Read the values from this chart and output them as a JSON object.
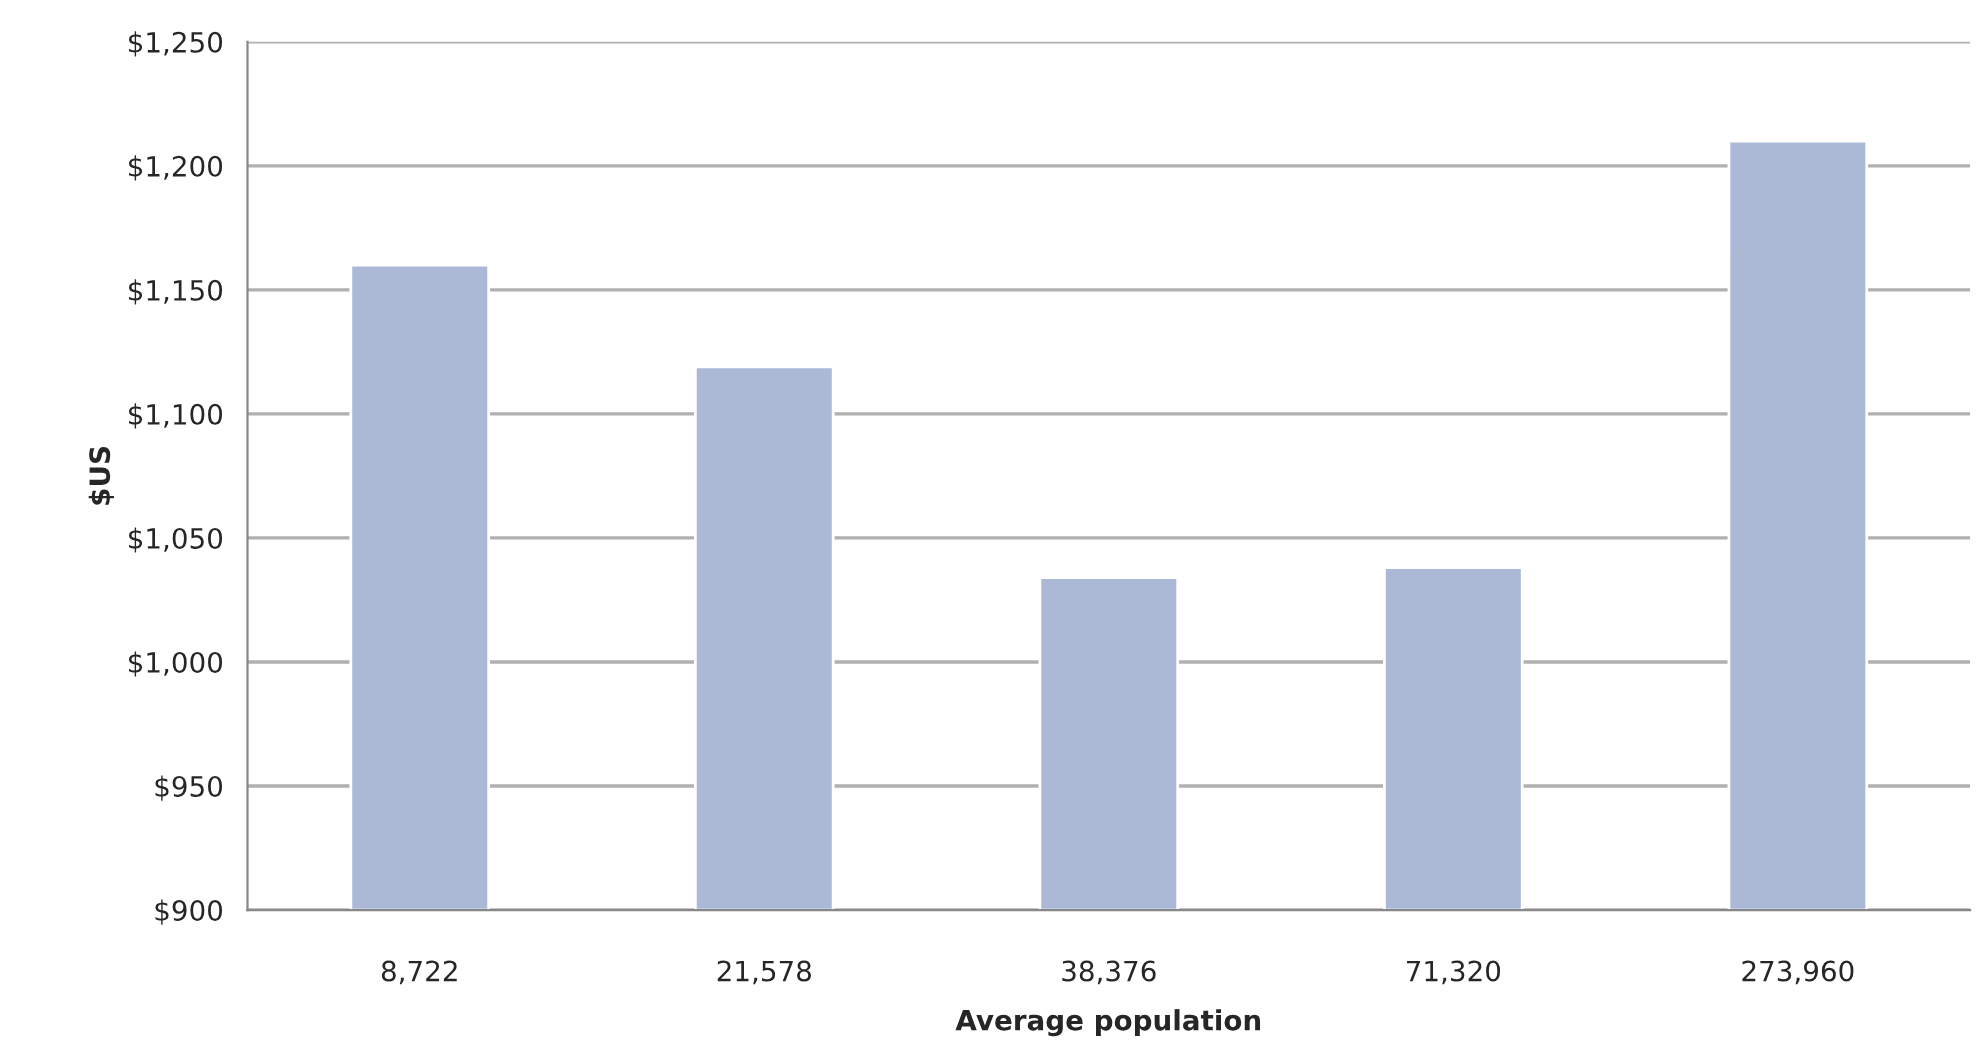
{
  "chart_data": {
    "type": "bar",
    "xlabel": "Average population",
    "ylabel": "$US",
    "categories": [
      "8,722",
      "21,578",
      "38,376",
      "71,320",
      "273,960"
    ],
    "values": [
      1160,
      1119,
      1034,
      1038,
      1210
    ],
    "color": "#abb9d6",
    "ylim": [
      900,
      1250
    ],
    "yticks": [
      {
        "value": 900,
        "label": "$900"
      },
      {
        "value": 950,
        "label": "$950"
      },
      {
        "value": 1000,
        "label": "$1,000"
      },
      {
        "value": 1050,
        "label": "$1,050"
      },
      {
        "value": 1100,
        "label": "$1,100"
      },
      {
        "value": 1150,
        "label": "$1,150"
      },
      {
        "value": 1200,
        "label": "$1,200"
      },
      {
        "value": 1250,
        "label": "$1,250"
      }
    ],
    "grid": "y"
  }
}
